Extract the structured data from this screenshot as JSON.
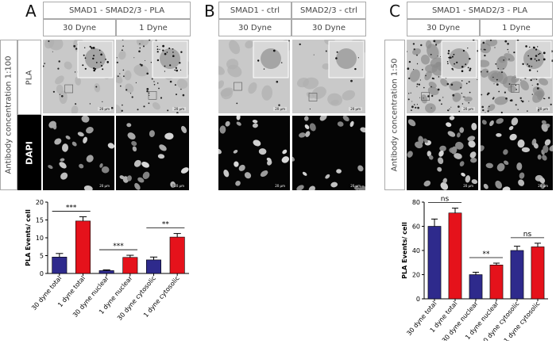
{
  "panels": {
    "A": {
      "letter": "A",
      "header": "SMAD1 - SMAD2/3 - PLA",
      "col1": "30 Dyne",
      "col2": "1 Dyne",
      "row_pla": "PLA",
      "row_dapi": "DAPI",
      "side": "Antibody concentration 1:100"
    },
    "B": {
      "letter": "B",
      "header1": "SMAD1 - ctrl",
      "header2": "SMAD2/3 - ctrl",
      "col1": "30 Dyne",
      "col2": "30 Dyne"
    },
    "C": {
      "letter": "C",
      "header": "SMAD1 - SMAD2/3 - PLA",
      "col1": "30 Dyne",
      "col2": "1 Dyne",
      "side": "Antibody concentration 1:50"
    }
  },
  "scalebars": {
    "pla": "20 µm",
    "inset": "10 µm",
    "dapi": "20 µm"
  },
  "colors": {
    "blue": "#2e2a8c",
    "red": "#e5121b"
  },
  "chart_data": [
    {
      "type": "bar",
      "panel": "A",
      "categories": [
        "30 dyne total",
        "1 dyne total",
        "30 dyne nuclear",
        "1 dyne nuclear",
        "30 dyne cytosolic",
        "1 dyne cytosolic"
      ],
      "values": [
        4.6,
        14.7,
        0.8,
        4.5,
        3.8,
        10.2
      ],
      "errors": [
        1.0,
        1.2,
        0.2,
        0.6,
        0.8,
        1.0
      ],
      "bar_colors": [
        "blue",
        "red",
        "blue",
        "red",
        "blue",
        "red"
      ],
      "ylabel": "PLA Events/ cell",
      "ylim": [
        0,
        20
      ],
      "yticks": [
        0,
        5,
        10,
        15,
        20
      ],
      "significance": [
        {
          "from": 0,
          "to": 1,
          "label": "***"
        },
        {
          "from": 2,
          "to": 3,
          "label": "***"
        },
        {
          "from": 4,
          "to": 5,
          "label": "**"
        }
      ]
    },
    {
      "type": "bar",
      "panel": "C",
      "categories": [
        "30 dyne total",
        "1 dyne total",
        "30 dyne nuclear",
        "1 dyne nuclear",
        "30 dyne cytosolic",
        "1 dyne cytosolic"
      ],
      "values": [
        60,
        71,
        20,
        28,
        40,
        43
      ],
      "errors": [
        6,
        4,
        2,
        1.5,
        3.5,
        3
      ],
      "bar_colors": [
        "blue",
        "red",
        "blue",
        "red",
        "blue",
        "red"
      ],
      "ylabel": "PLA Events/ cell",
      "ylim": [
        0,
        80
      ],
      "yticks": [
        0,
        20,
        40,
        60,
        80
      ],
      "significance": [
        {
          "from": 0,
          "to": 1,
          "label": "ns"
        },
        {
          "from": 2,
          "to": 3,
          "label": "**"
        },
        {
          "from": 4,
          "to": 5,
          "label": "ns"
        }
      ]
    }
  ]
}
